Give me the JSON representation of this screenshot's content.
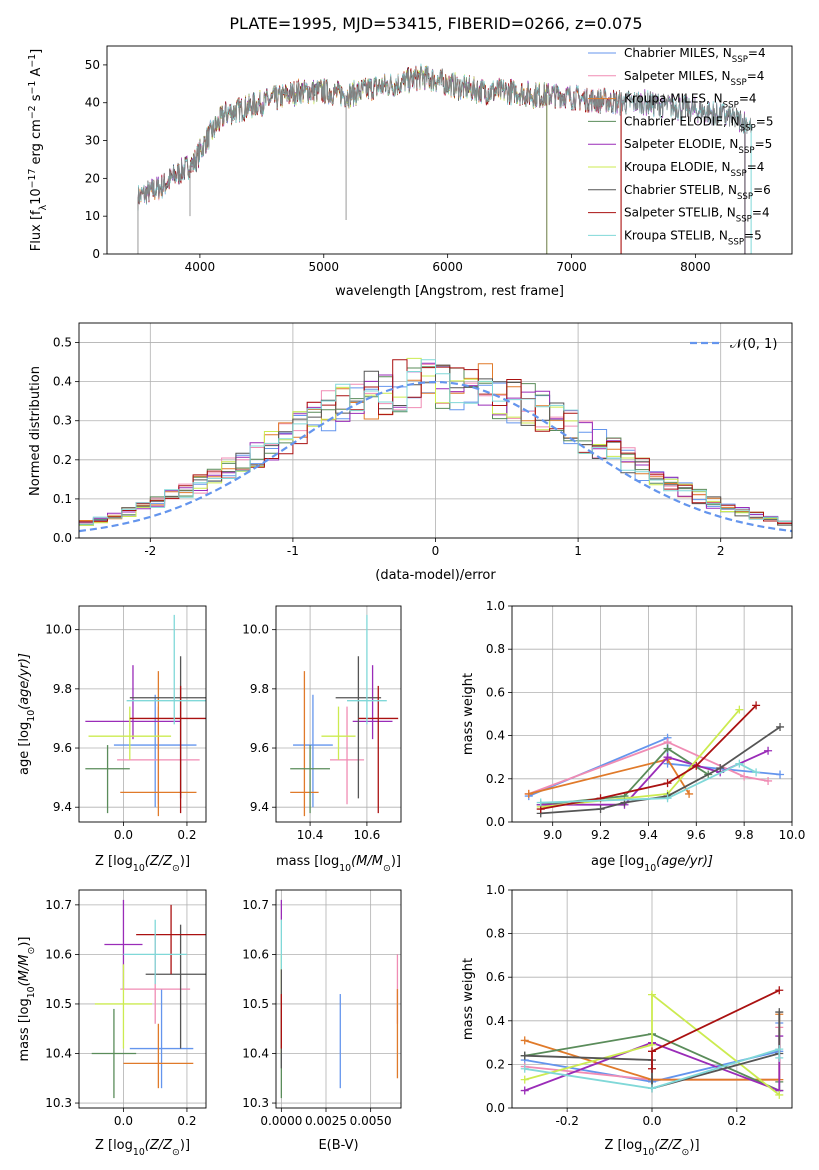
{
  "figure": {
    "title": "PLATE=1995, MJD=53415, FIBERID=0266, z=0.075",
    "colors": [
      "#6495ED",
      "#F08CB4",
      "#E07A2A",
      "#5A8C5A",
      "#9A2CB8",
      "#CCEB50",
      "#555555",
      "#AA1111",
      "#80D8D8"
    ]
  },
  "chart_data": [
    {
      "id": "spectrum",
      "type": "line",
      "xlabel": "wavelength [Angstrom, rest frame]",
      "ylabel_parts": [
        "Flux [f",
        "λ",
        "10",
        "−17",
        " erg cm",
        "−2",
        " s",
        "−1",
        " A",
        "−1",
        "]"
      ],
      "xlim": [
        3250,
        8780
      ],
      "ylim": [
        0,
        55
      ],
      "xticks": [
        4000,
        5000,
        6000,
        7000,
        8000
      ],
      "yticks": [
        0,
        10,
        20,
        30,
        40,
        50
      ],
      "legend_position": "upper-right",
      "legend": [
        {
          "pre": "Chabrier MILES, N",
          "sub": "SSP",
          "post": "=4"
        },
        {
          "pre": "Salpeter MILES, N",
          "sub": "SSP",
          "post": "=4"
        },
        {
          "pre": "Kroupa MILES, N",
          "sub": "SSP",
          "post": "=4"
        },
        {
          "pre": "Chabrier ELODIE, N",
          "sub": "SSP",
          "post": "=5"
        },
        {
          "pre": "Salpeter ELODIE, N",
          "sub": "SSP",
          "post": "=5"
        },
        {
          "pre": "Kroupa ELODIE, N",
          "sub": "SSP",
          "post": "=4"
        },
        {
          "pre": "Chabrier STELIB, N",
          "sub": "SSP",
          "post": "=6"
        },
        {
          "pre": "Salpeter STELIB, N",
          "sub": "SSP",
          "post": "=4"
        },
        {
          "pre": "Kroupa STELIB, N",
          "sub": "SSP",
          "post": "=5"
        }
      ],
      "continuum": [
        [
          3500,
          15
        ],
        [
          3700,
          18
        ],
        [
          3850,
          22
        ],
        [
          3950,
          24
        ],
        [
          4050,
          30
        ],
        [
          4200,
          37
        ],
        [
          4400,
          39
        ],
        [
          4600,
          41
        ],
        [
          4800,
          43
        ],
        [
          5000,
          43
        ],
        [
          5200,
          42
        ],
        [
          5400,
          44
        ],
        [
          5600,
          45
        ],
        [
          5800,
          47
        ],
        [
          5900,
          46
        ],
        [
          6100,
          44
        ],
        [
          6300,
          43
        ],
        [
          6500,
          43
        ],
        [
          6700,
          42
        ],
        [
          6900,
          42
        ],
        [
          7100,
          41
        ],
        [
          7400,
          40
        ],
        [
          7600,
          40
        ],
        [
          7800,
          39
        ],
        [
          8000,
          38
        ],
        [
          8200,
          37
        ],
        [
          8400,
          35
        ],
        [
          8450,
          34
        ]
      ],
      "model_ranges": [
        [
          3500,
          7400
        ],
        [
          3500,
          7400
        ],
        [
          3500,
          7400
        ],
        [
          3900,
          6800
        ],
        [
          3500,
          8400
        ],
        [
          3900,
          6800
        ],
        [
          3500,
          8400
        ],
        [
          3500,
          7400
        ],
        [
          3500,
          8450
        ]
      ]
    },
    {
      "id": "residuals",
      "type": "histogram",
      "xlabel": "(data-model)/error",
      "ylabel": "Normed distribution",
      "xlim": [
        -2.5,
        2.5
      ],
      "ylim": [
        0,
        0.55
      ],
      "xticks": [
        -2,
        -1,
        0,
        1,
        2
      ],
      "yticks": [
        0.0,
        0.1,
        0.2,
        0.3,
        0.4,
        0.5
      ],
      "grid": true,
      "legend_position": "upper-right",
      "reference_curve": {
        "label": "𝒩(0, 1)",
        "mean": 0,
        "sigma": 1
      },
      "bin_width": 0.1
    },
    {
      "id": "age-vs-Z",
      "type": "errorbar",
      "xlabel_parts": [
        "Z [log",
        "10",
        "(Z/Z",
        "⊙",
        ")]"
      ],
      "ylabel_parts": [
        "age  [log",
        "10",
        "(age/yr)]"
      ],
      "xlim": [
        -0.14,
        0.26
      ],
      "ylim": [
        9.35,
        10.08
      ],
      "xticks": [
        0.0,
        0.2
      ],
      "yticks": [
        9.4,
        9.6,
        9.8,
        10.0
      ],
      "points": [
        {
          "x": 0.1,
          "y": 9.61,
          "xerr": 0.13,
          "yerr": [
            0.21,
            0.17
          ]
        },
        {
          "x": 0.11,
          "y": 9.56,
          "xerr": 0.13,
          "yerr": [
            0.15,
            0.18
          ]
        },
        {
          "x": 0.11,
          "y": 9.45,
          "xerr": 0.12,
          "yerr": [
            0.08,
            0.41
          ]
        },
        {
          "x": -0.05,
          "y": 9.53,
          "xerr": 0.07,
          "yerr": [
            0.15,
            0.08
          ]
        },
        {
          "x": 0.03,
          "y": 9.69,
          "xerr": 0.15,
          "yerr": [
            0.06,
            0.19
          ]
        },
        {
          "x": 0.02,
          "y": 9.64,
          "xerr": 0.13,
          "yerr": [
            0.08,
            0.1
          ]
        },
        {
          "x": 0.18,
          "y": 9.77,
          "xerr": 0.16,
          "yerr": [
            0.34,
            0.14
          ]
        },
        {
          "x": 0.18,
          "y": 9.7,
          "xerr": 0.16,
          "yerr": [
            0.32,
            0.11
          ]
        },
        {
          "x": 0.16,
          "y": 9.76,
          "xerr": 0.15,
          "yerr": [
            0.08,
            0.29
          ]
        }
      ]
    },
    {
      "id": "age-vs-mass",
      "type": "errorbar",
      "xlabel_parts": [
        "mass [log",
        "10",
        "(M/M",
        "⊙",
        ")]"
      ],
      "ylabel_parts": [],
      "xlim": [
        10.28,
        10.72
      ],
      "ylim": [
        9.35,
        10.08
      ],
      "xticks": [
        10.4,
        10.6
      ],
      "yticks": [
        9.4,
        9.6,
        9.8,
        10.0
      ],
      "points": [
        {
          "x": 10.41,
          "y": 9.61,
          "xerr": 0.07,
          "yerr": [
            0.21,
            0.17
          ]
        },
        {
          "x": 10.53,
          "y": 9.56,
          "xerr": 0.06,
          "yerr": [
            0.15,
            0.18
          ]
        },
        {
          "x": 10.38,
          "y": 9.45,
          "xerr": 0.05,
          "yerr": [
            0.08,
            0.41
          ]
        },
        {
          "x": 10.4,
          "y": 9.53,
          "xerr": 0.07,
          "yerr": [
            0.15,
            0.08
          ]
        },
        {
          "x": 10.62,
          "y": 9.69,
          "xerr": 0.07,
          "yerr": [
            0.06,
            0.19
          ]
        },
        {
          "x": 10.5,
          "y": 9.64,
          "xerr": 0.06,
          "yerr": [
            0.08,
            0.1
          ]
        },
        {
          "x": 10.57,
          "y": 9.77,
          "xerr": 0.08,
          "yerr": [
            0.34,
            0.14
          ]
        },
        {
          "x": 10.64,
          "y": 9.7,
          "xerr": 0.07,
          "yerr": [
            0.32,
            0.11
          ]
        },
        {
          "x": 10.6,
          "y": 9.76,
          "xerr": 0.07,
          "yerr": [
            0.08,
            0.29
          ]
        }
      ]
    },
    {
      "id": "mass-vs-Z",
      "type": "errorbar",
      "xlabel_parts": [
        "Z [log",
        "10",
        "(Z/Z",
        "⊙",
        ")]"
      ],
      "ylabel_parts": [
        "mass [log",
        "10",
        "(M/M",
        "⊙",
        ")]"
      ],
      "xlim": [
        -0.14,
        0.26
      ],
      "ylim": [
        10.29,
        10.73
      ],
      "xticks": [
        0.0,
        0.2
      ],
      "yticks": [
        10.3,
        10.4,
        10.5,
        10.6,
        10.7
      ],
      "points": [
        {
          "x": 0.12,
          "y": 10.41,
          "xerr": 0.1,
          "yerr": [
            0.08,
            0.12
          ]
        },
        {
          "x": 0.1,
          "y": 10.53,
          "xerr": 0.11,
          "yerr": [
            0.07,
            0.11
          ]
        },
        {
          "x": 0.11,
          "y": 10.38,
          "xerr": 0.11,
          "yerr": [
            0.05,
            0.08
          ]
        },
        {
          "x": -0.03,
          "y": 10.4,
          "xerr": 0.07,
          "yerr": [
            0.09,
            0.09
          ]
        },
        {
          "x": 0.0,
          "y": 10.62,
          "xerr": 0.06,
          "yerr": [
            0.09,
            0.09
          ]
        },
        {
          "x": 0.0,
          "y": 10.5,
          "xerr": 0.09,
          "yerr": [
            0.09,
            0.08
          ]
        },
        {
          "x": 0.18,
          "y": 10.56,
          "xerr": 0.11,
          "yerr": [
            0.15,
            0.1
          ]
        },
        {
          "x": 0.15,
          "y": 10.64,
          "xerr": 0.11,
          "yerr": [
            0.08,
            0.06
          ]
        },
        {
          "x": 0.1,
          "y": 10.6,
          "xerr": 0.1,
          "yerr": [
            0.06,
            0.07
          ]
        }
      ]
    },
    {
      "id": "mass-vs-ebv",
      "type": "errorbar",
      "xlabel": "E(B-V)",
      "xlim": [
        -0.0003,
        0.0067
      ],
      "ylim": [
        10.29,
        10.73
      ],
      "xticks": [
        0.0,
        0.0025,
        0.005
      ],
      "xticklabels": [
        "0.0000",
        "0.0025",
        "0.0050"
      ],
      "yticks": [
        10.3,
        10.4,
        10.5,
        10.6,
        10.7
      ],
      "points": [
        {
          "x": 0.0033,
          "y": 10.42,
          "xerr": 0,
          "yerr": [
            0.09,
            0.1
          ]
        },
        {
          "x": 0.0065,
          "y": 10.53,
          "xerr": 0,
          "yerr": [
            0.07,
            0.07
          ]
        },
        {
          "x": 0.0065,
          "y": 10.45,
          "xerr": 0,
          "yerr": [
            0.1,
            0.08
          ]
        },
        {
          "x": 0.0,
          "y": 10.4,
          "xerr": 0,
          "yerr": [
            0.09,
            0.09
          ]
        },
        {
          "x": 0.0,
          "y": 10.69,
          "xerr": 0,
          "yerr": [
            0.02,
            0.02
          ]
        },
        {
          "x": 0.0,
          "y": 10.5,
          "xerr": 0,
          "yerr": [
            0.1,
            0.1
          ]
        },
        {
          "x": 0.0,
          "y": 10.47,
          "xerr": 0,
          "yerr": [
            0.1,
            0.1
          ]
        },
        {
          "x": 0.0,
          "y": 10.47,
          "xerr": 0,
          "yerr": [
            0.06,
            0.05
          ]
        },
        {
          "x": 0.0,
          "y": 10.62,
          "xerr": 0,
          "yerr": [
            0.05,
            0.05
          ]
        }
      ]
    },
    {
      "id": "weight-vs-age",
      "type": "line",
      "xlabel_parts": [
        "age  [log",
        "10",
        "(age/yr)]"
      ],
      "ylabel": "mass weight",
      "xlim": [
        8.83,
        10.0
      ],
      "ylim": [
        0,
        1
      ],
      "xticks": [
        9.0,
        9.2,
        9.4,
        9.6,
        9.8,
        10.0
      ],
      "yticks": [
        0.0,
        0.2,
        0.4,
        0.6,
        0.8,
        1.0
      ],
      "grid": true,
      "series": [
        {
          "x": [
            8.9,
            9.48,
            9.48,
            9.95
          ],
          "y": [
            0.12,
            0.39,
            0.27,
            0.22
          ]
        },
        {
          "x": [
            8.9,
            9.48,
            9.8,
            9.9
          ],
          "y": [
            0.13,
            0.37,
            0.21,
            0.19
          ]
        },
        {
          "x": [
            8.9,
            9.48,
            9.57
          ],
          "y": [
            0.13,
            0.29,
            0.13
          ]
        },
        {
          "x": [
            8.95,
            9.3,
            9.48,
            9.65
          ],
          "y": [
            0.08,
            0.12,
            0.34,
            0.22
          ]
        },
        {
          "x": [
            8.95,
            9.3,
            9.48,
            9.7,
            9.9
          ],
          "y": [
            0.08,
            0.08,
            0.3,
            0.23,
            0.33
          ]
        },
        {
          "x": [
            8.95,
            9.48,
            9.78
          ],
          "y": [
            0.07,
            0.13,
            0.52
          ]
        },
        {
          "x": [
            8.95,
            9.2,
            9.3,
            9.48,
            9.7,
            9.95
          ],
          "y": [
            0.04,
            0.06,
            0.09,
            0.12,
            0.25,
            0.44
          ]
        },
        {
          "x": [
            8.95,
            9.2,
            9.48,
            9.6,
            9.85
          ],
          "y": [
            0.06,
            0.11,
            0.18,
            0.26,
            0.54
          ]
        },
        {
          "x": [
            8.95,
            9.48,
            9.78,
            9.85
          ],
          "y": [
            0.09,
            0.11,
            0.27,
            0.23
          ]
        }
      ]
    },
    {
      "id": "weight-vs-Z",
      "type": "line",
      "xlabel_parts": [
        "Z [log",
        "10",
        "(Z/Z",
        "⊙",
        ")]"
      ],
      "ylabel": "mass weight",
      "xlim": [
        -0.33,
        0.33
      ],
      "ylim": [
        0,
        1
      ],
      "xticks": [
        -0.2,
        0.0,
        0.2
      ],
      "yticks": [
        0.0,
        0.2,
        0.4,
        0.6,
        0.8,
        1.0
      ],
      "grid": true,
      "series": [
        {
          "x": [
            -0.3,
            0.0,
            0.3,
            0.3
          ],
          "y": [
            0.22,
            0.12,
            0.26,
            0.39
          ]
        },
        {
          "x": [
            -0.3,
            0.0,
            0.3,
            0.3
          ],
          "y": [
            0.19,
            0.13,
            0.13,
            0.37
          ]
        },
        {
          "x": [
            -0.3,
            0.0,
            0.3,
            0.3
          ],
          "y": [
            0.31,
            0.13,
            0.13,
            0.43
          ]
        },
        {
          "x": [
            -0.3,
            0.0,
            0.3,
            0.3
          ],
          "y": [
            0.24,
            0.34,
            0.08,
            0.12
          ]
        },
        {
          "x": [
            -0.3,
            0.0,
            0.3,
            0.3
          ],
          "y": [
            0.08,
            0.3,
            0.08,
            0.33
          ]
        },
        {
          "x": [
            -0.3,
            0.0,
            0.0,
            0.3
          ],
          "y": [
            0.13,
            0.29,
            0.52,
            0.06
          ]
        },
        {
          "x": [
            -0.3,
            0.0,
            0.0,
            0.3,
            0.3
          ],
          "y": [
            0.24,
            0.22,
            0.09,
            0.25,
            0.44
          ]
        },
        {
          "x": [
            0.0,
            0.0,
            0.3
          ],
          "y": [
            0.18,
            0.26,
            0.54
          ]
        },
        {
          "x": [
            -0.3,
            0.0,
            0.3,
            0.3
          ],
          "y": [
            0.18,
            0.09,
            0.27,
            0.23
          ]
        }
      ]
    }
  ]
}
